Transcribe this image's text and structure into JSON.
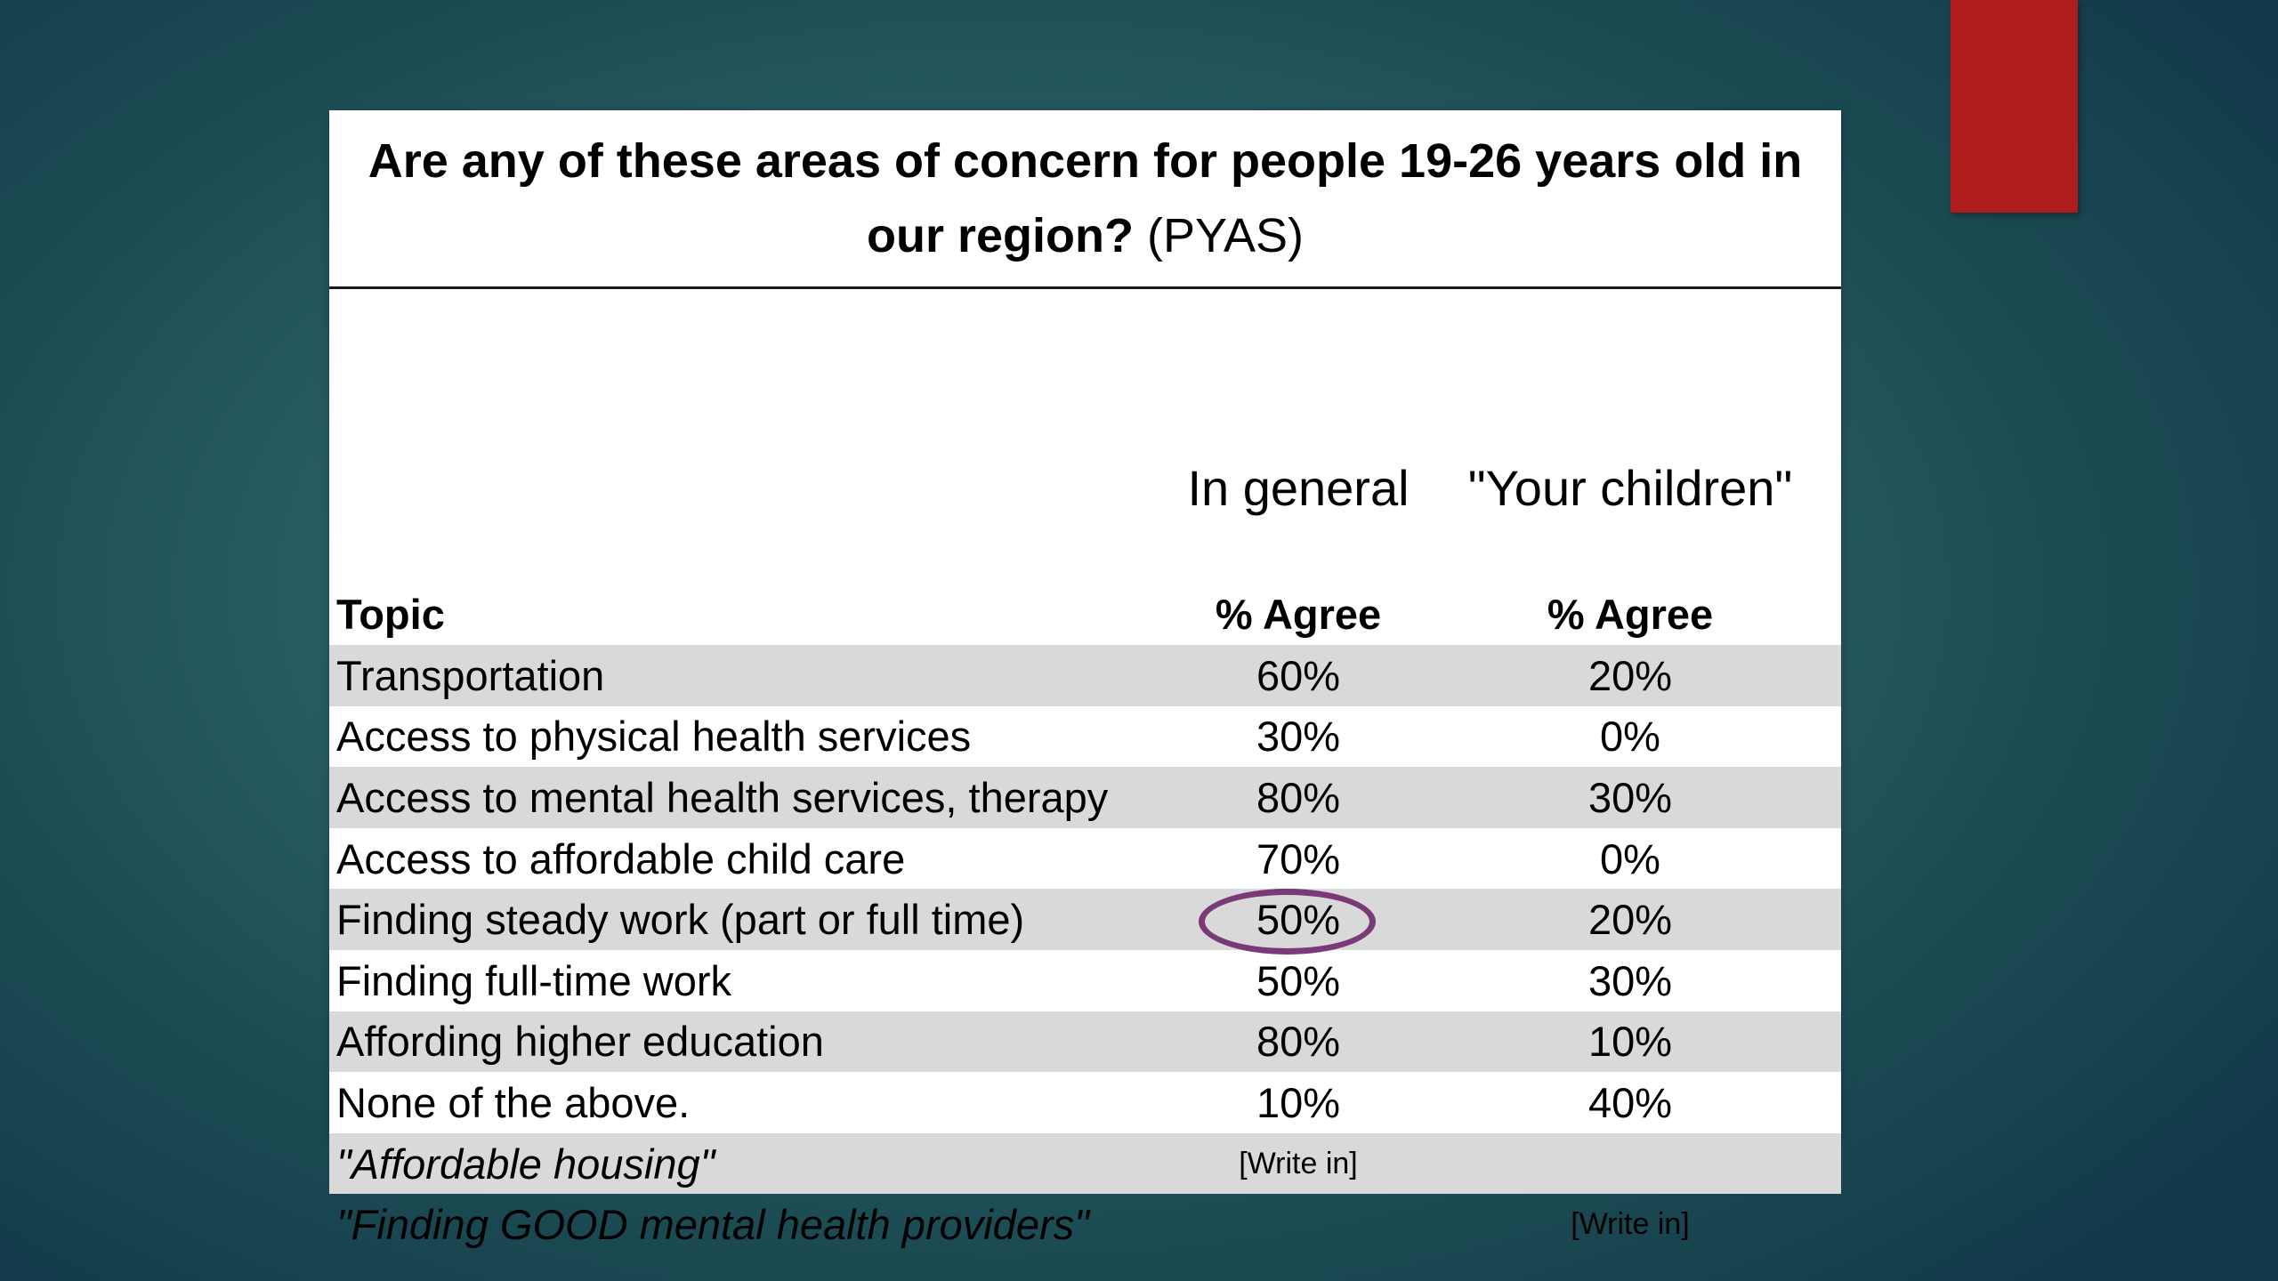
{
  "slide": {
    "title_bold": "Are any of these areas of concern for people 19-26 years old in our region?",
    "title_suffix": "(PYAS)",
    "group_headers": {
      "general": "In general",
      "children": "\"Your children\""
    },
    "columns": {
      "topic": "Topic",
      "general": "% Agree",
      "children": "% Agree"
    },
    "rows": [
      {
        "topic": "Transportation",
        "general": "60%",
        "children": "20%"
      },
      {
        "topic": "Access to physical health services",
        "general": "30%",
        "children": "0%"
      },
      {
        "topic": "Access to mental health services, therapy",
        "general": "80%",
        "children": "30%"
      },
      {
        "topic": "Access to affordable child care",
        "general": "70%",
        "children": "0%"
      },
      {
        "topic": "Finding steady work (part or full time)",
        "general": "50%",
        "children": "20%"
      },
      {
        "topic": "Finding full-time work",
        "general": "50%",
        "children": "30%"
      },
      {
        "topic": "Affording higher education",
        "general": "80%",
        "children": "10%"
      },
      {
        "topic": "None of the above.",
        "general": "10%",
        "children": "40%"
      },
      {
        "topic": "\"Affordable housing\"",
        "general": "[Write in]",
        "children": ""
      },
      {
        "topic": "\"Finding GOOD mental health providers\"",
        "general": "",
        "children": "[Write in]"
      }
    ],
    "colors": {
      "accent_tab": "#b01c1c",
      "row_shade": "#d9d9d9",
      "highlight_circle": "#7a3a78"
    }
  }
}
